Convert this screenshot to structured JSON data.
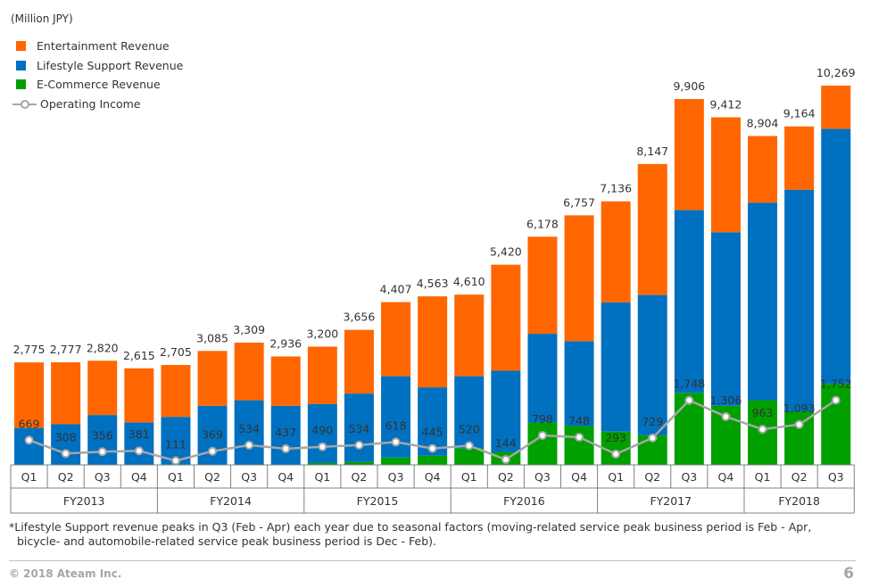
{
  "unit_label": "(Million JPY)",
  "legend": {
    "entertainment": "Entertainment Revenue",
    "lifestyle": "Lifestyle Support Revenue",
    "ecommerce": "E-Commerce Revenue",
    "operating": "Operating Income"
  },
  "colors": {
    "entertainment": "#ff6600",
    "lifestyle": "#0070c0",
    "ecommerce": "#00a000",
    "operating": "#a6a6a6"
  },
  "chart_data": {
    "type": "bar",
    "stacked": true,
    "categories": [
      "Q1",
      "Q2",
      "Q3",
      "Q4",
      "Q1",
      "Q2",
      "Q3",
      "Q4",
      "Q1",
      "Q2",
      "Q3",
      "Q4",
      "Q1",
      "Q2",
      "Q3",
      "Q4",
      "Q1",
      "Q2",
      "Q3",
      "Q4",
      "Q1",
      "Q2",
      "Q3"
    ],
    "fiscal_years": [
      "FY2013",
      "FY2014",
      "FY2015",
      "FY2016",
      "FY2017",
      "FY2018"
    ],
    "fiscal_year_quarter_counts": [
      4,
      4,
      4,
      4,
      4,
      3
    ],
    "totals": [
      2775,
      2777,
      2820,
      2615,
      2705,
      3085,
      3309,
      2936,
      3200,
      3656,
      4407,
      4563,
      4610,
      5420,
      6178,
      6757,
      7136,
      8147,
      9906,
      9412,
      8904,
      9164,
      10269
    ],
    "total_labels": [
      "2,775",
      "2,777",
      "2,820",
      "2,615",
      "2,705",
      "3,085",
      "3,309",
      "2,936",
      "3,200",
      "3,656",
      "4,407",
      "4,563",
      "4,610",
      "5,420",
      "6,178",
      "6,757",
      "7,136",
      "8,147",
      "9,906",
      "9,412",
      "8,904",
      "9,164",
      "10,269"
    ],
    "series": [
      {
        "name": "E-Commerce Revenue",
        "values": [
          0,
          0,
          0,
          0,
          0,
          0,
          0,
          0,
          50,
          80,
          200,
          250,
          450,
          350,
          1150,
          1050,
          900,
          800,
          1950,
          1600,
          1750,
          1450,
          2200
        ]
      },
      {
        "name": "Lifestyle Support Revenue",
        "values": [
          1000,
          1100,
          1350,
          1150,
          1300,
          1600,
          1750,
          1600,
          1600,
          1850,
          2200,
          1850,
          1950,
          2200,
          2400,
          2300,
          3500,
          3800,
          4950,
          4700,
          5350,
          6000,
          6900
        ]
      },
      {
        "name": "Entertainment Revenue",
        "values": [
          1775,
          1677,
          1470,
          1465,
          1405,
          1485,
          1559,
          1336,
          1550,
          1726,
          2007,
          2463,
          2210,
          2870,
          2628,
          3407,
          2736,
          3547,
          3006,
          3112,
          1804,
          1714,
          1169
        ]
      }
    ],
    "operating_income": {
      "name": "Operating Income",
      "values": [
        669,
        308,
        356,
        381,
        111,
        369,
        534,
        437,
        490,
        534,
        618,
        445,
        520,
        144,
        798,
        748,
        293,
        729,
        1748,
        1306,
        963,
        1093,
        1752
      ],
      "labels": [
        "669",
        "308",
        "356",
        "381",
        "111",
        "369",
        "534",
        "437",
        "490",
        "534",
        "618",
        "445",
        "520",
        "144",
        "798",
        "748",
        "293",
        "729",
        "1,748",
        "1,306",
        "963",
        "1,093",
        "1,752"
      ]
    },
    "ylim": [
      0,
      10800
    ]
  },
  "footnote": {
    "line1": "*Lifestyle Support revenue peaks in Q3 (Feb - Apr) each year due to seasonal factors (moving-related service peak business period is Feb - Apr,",
    "line2": "bicycle- and automobile-related service peak business period is Dec - Feb)."
  },
  "footer": {
    "copyright": "© 2018 Ateam Inc.",
    "page_number": "6"
  }
}
